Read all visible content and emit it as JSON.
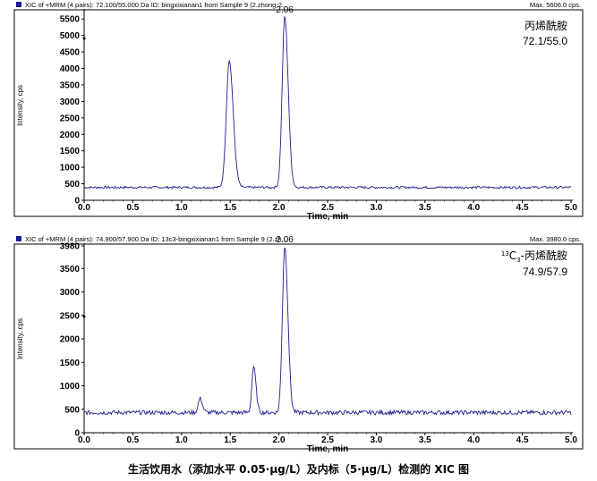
{
  "caption": "生活饮用水（添加水平 0.05·μg/L）及内标（5·μg/L）检测的 XIC 图",
  "chart_data": [
    {
      "type": "line",
      "header_left": "XIC of +MRM (4 pairs): 72.100/55.000 Da ID: bingxixianan1 from Sample 9 (2.zhong-2...",
      "header_right": "Max. 5606.0 cps.",
      "ylabel": "Intensity, cps",
      "xlabel": "Time, min",
      "xlim": [
        0.0,
        5.0
      ],
      "ylim": [
        0,
        5750
      ],
      "xticks": [
        "0.0",
        "0.5",
        "1.0",
        "1.5",
        "2.0",
        "2.5",
        "3.0",
        "3.5",
        "4.0",
        "4.5",
        "5.0"
      ],
      "yticks": [
        "0",
        "500",
        "1000",
        "1500",
        "2000",
        "2500",
        "3000",
        "3500",
        "4000",
        "4500",
        "5000",
        "5500"
      ],
      "annotations": [
        {
          "x": 2.06,
          "text": "2.06"
        }
      ],
      "legend_text": [
        "丙烯酰胺",
        "72.1/55.0"
      ],
      "baseline": 390,
      "noise": 35,
      "peaks": [
        {
          "x": 1.49,
          "height": 3850,
          "width": 0.03
        },
        {
          "x": 2.06,
          "height": 5200,
          "width": 0.026
        }
      ]
    },
    {
      "type": "line",
      "header_left": "XIC of +MRM (4 pairs): 74.900/57.900 Da ID: 13c3-bingxixianan1 from Sample 9 (2.zh...",
      "header_right": "Max. 3980.0 cps.",
      "ylabel": "Intensity, cps",
      "xlabel": "Time, min",
      "xlim": [
        0.0,
        5.0
      ],
      "ylim": [
        0,
        4000
      ],
      "xticks": [
        "0.0",
        "0.5",
        "1.0",
        "1.5",
        "2.0",
        "2.5",
        "3.0",
        "3.5",
        "4.0",
        "4.5",
        "5.0"
      ],
      "yticks": [
        "0",
        "500",
        "1000",
        "1500",
        "2000",
        "2500",
        "3000",
        "3500",
        "3980"
      ],
      "annotations": [
        {
          "x": 2.06,
          "text": "2.06"
        }
      ],
      "legend_sup": "13",
      "legend_main": "C",
      "legend_sub": "3",
      "legend_rest": "-丙烯酰胺",
      "legend_line2": "74.9/57.9",
      "baseline": 430,
      "noise": 45,
      "peaks": [
        {
          "x": 1.19,
          "height": 300,
          "width": 0.018
        },
        {
          "x": 1.74,
          "height": 980,
          "width": 0.018
        },
        {
          "x": 2.06,
          "height": 3550,
          "width": 0.024
        }
      ]
    }
  ]
}
